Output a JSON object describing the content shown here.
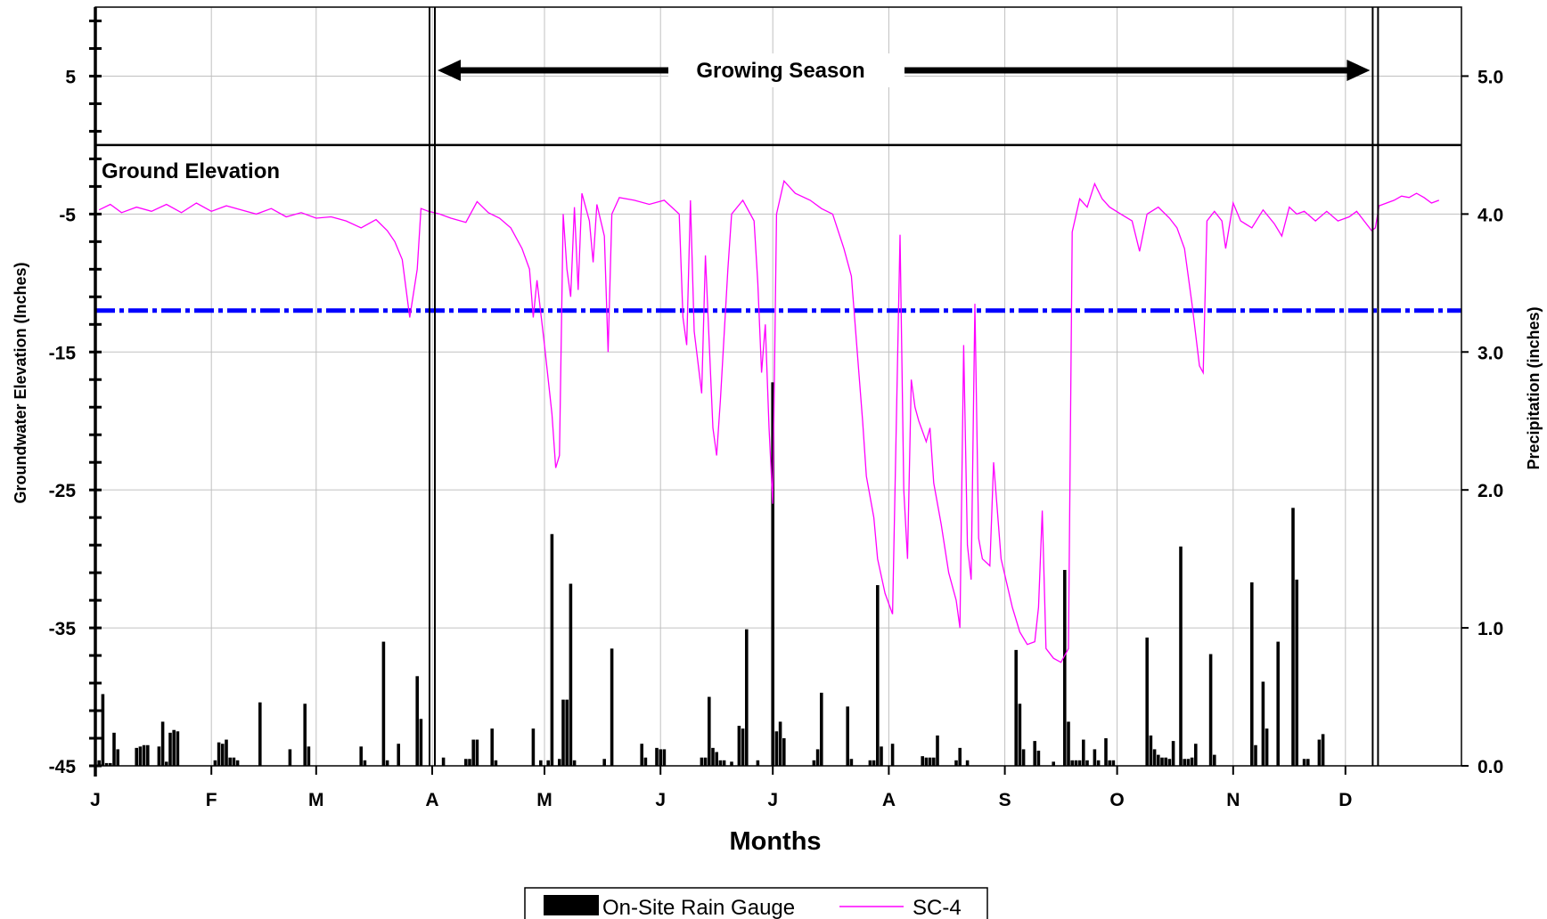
{
  "chart_data": {
    "type": "bar+line",
    "xlabel": "Months",
    "ylabel_left": "Groundwater Elevation (Inches)",
    "ylabel_right": "Precipitation (inches)",
    "x_tick_labels": [
      "J",
      "F",
      "M",
      "A",
      "M",
      "J",
      "J",
      "A",
      "S",
      "O",
      "N",
      "D"
    ],
    "x_range_days": [
      1,
      366
    ],
    "y_left": {
      "range": [
        -45,
        10
      ],
      "ticks": [
        5,
        -5,
        -15,
        -25,
        -35,
        -45
      ]
    },
    "y_right": {
      "range": [
        0,
        5.5
      ],
      "ticks": [
        "0.0",
        "1.0",
        "2.0",
        "3.0",
        "4.0",
        "5.0"
      ]
    },
    "annotations": {
      "ground_elevation": "Ground Elevation",
      "growing_season": "Growing Season",
      "ground_elevation_value": 0,
      "growing_season_start_day": 91,
      "growing_season_end_day": 343
    },
    "threshold_line": {
      "value": -12,
      "color": "#0000ff"
    },
    "series": [
      {
        "name": "On-Site Rain Gauge",
        "kind": "bar",
        "axis": "right",
        "color": "#000000",
        "points": [
          [
            2,
            0.04
          ],
          [
            3,
            0.52
          ],
          [
            4,
            0.02
          ],
          [
            5,
            0.02
          ],
          [
            6,
            0.24
          ],
          [
            7,
            0.12
          ],
          [
            12,
            0.13
          ],
          [
            13,
            0.14
          ],
          [
            14,
            0.15
          ],
          [
            15,
            0.15
          ],
          [
            18,
            0.14
          ],
          [
            19,
            0.32
          ],
          [
            20,
            0.03
          ],
          [
            21,
            0.24
          ],
          [
            22,
            0.26
          ],
          [
            23,
            0.25
          ],
          [
            33,
            0.04
          ],
          [
            34,
            0.17
          ],
          [
            35,
            0.16
          ],
          [
            36,
            0.19
          ],
          [
            37,
            0.06
          ],
          [
            38,
            0.06
          ],
          [
            39,
            0.04
          ],
          [
            45,
            0.46
          ],
          [
            53,
            0.12
          ],
          [
            57,
            0.45
          ],
          [
            58,
            0.14
          ],
          [
            72,
            0.14
          ],
          [
            73,
            0.04
          ],
          [
            78,
            0.9
          ],
          [
            79,
            0.04
          ],
          [
            82,
            0.16
          ],
          [
            87,
            0.65
          ],
          [
            88,
            0.34
          ],
          [
            94,
            0.06
          ],
          [
            100,
            0.05
          ],
          [
            101,
            0.05
          ],
          [
            102,
            0.19
          ],
          [
            103,
            0.19
          ],
          [
            107,
            0.27
          ],
          [
            108,
            0.04
          ],
          [
            118,
            0.27
          ],
          [
            120,
            0.04
          ],
          [
            122,
            0.04
          ],
          [
            123,
            1.68
          ],
          [
            125,
            0.05
          ],
          [
            126,
            0.48
          ],
          [
            127,
            0.48
          ],
          [
            128,
            1.32
          ],
          [
            129,
            0.04
          ],
          [
            137,
            0.05
          ],
          [
            139,
            0.85
          ],
          [
            147,
            0.16
          ],
          [
            148,
            0.06
          ],
          [
            151,
            0.13
          ],
          [
            152,
            0.12
          ],
          [
            153,
            0.12
          ],
          [
            163,
            0.06
          ],
          [
            164,
            0.06
          ],
          [
            165,
            0.5
          ],
          [
            166,
            0.13
          ],
          [
            167,
            0.1
          ],
          [
            168,
            0.04
          ],
          [
            169,
            0.04
          ],
          [
            171,
            0.03
          ],
          [
            173,
            0.29
          ],
          [
            174,
            0.27
          ],
          [
            175,
            0.99
          ],
          [
            178,
            0.04
          ],
          [
            182,
            2.78
          ],
          [
            183,
            0.25
          ],
          [
            184,
            0.32
          ],
          [
            185,
            0.2
          ],
          [
            193,
            0.04
          ],
          [
            194,
            0.12
          ],
          [
            195,
            0.53
          ],
          [
            202,
            0.43
          ],
          [
            203,
            0.05
          ],
          [
            208,
            0.04
          ],
          [
            209,
            0.04
          ],
          [
            210,
            1.31
          ],
          [
            211,
            0.14
          ],
          [
            214,
            0.16
          ],
          [
            222,
            0.07
          ],
          [
            223,
            0.06
          ],
          [
            224,
            0.06
          ],
          [
            225,
            0.06
          ],
          [
            226,
            0.22
          ],
          [
            231,
            0.04
          ],
          [
            232,
            0.13
          ],
          [
            234,
            0.04
          ],
          [
            247,
            0.84
          ],
          [
            248,
            0.45
          ],
          [
            249,
            0.12
          ],
          [
            252,
            0.18
          ],
          [
            253,
            0.11
          ],
          [
            257,
            0.03
          ],
          [
            260,
            1.42
          ],
          [
            261,
            0.32
          ],
          [
            262,
            0.04
          ],
          [
            263,
            0.04
          ],
          [
            264,
            0.04
          ],
          [
            265,
            0.19
          ],
          [
            266,
            0.04
          ],
          [
            268,
            0.12
          ],
          [
            269,
            0.04
          ],
          [
            271,
            0.2
          ],
          [
            272,
            0.04
          ],
          [
            273,
            0.04
          ],
          [
            282,
            0.93
          ],
          [
            283,
            0.22
          ],
          [
            284,
            0.12
          ],
          [
            285,
            0.08
          ],
          [
            286,
            0.06
          ],
          [
            287,
            0.06
          ],
          [
            288,
            0.05
          ],
          [
            289,
            0.18
          ],
          [
            291,
            1.59
          ],
          [
            292,
            0.05
          ],
          [
            293,
            0.05
          ],
          [
            294,
            0.06
          ],
          [
            295,
            0.16
          ],
          [
            299,
            0.81
          ],
          [
            300,
            0.08
          ],
          [
            310,
            1.33
          ],
          [
            311,
            0.15
          ],
          [
            313,
            0.61
          ],
          [
            314,
            0.27
          ],
          [
            317,
            0.9
          ],
          [
            321,
            1.87
          ],
          [
            322,
            1.35
          ],
          [
            324,
            0.05
          ],
          [
            325,
            0.05
          ],
          [
            328,
            0.19
          ],
          [
            329,
            0.23
          ]
        ]
      },
      {
        "name": "SC-4",
        "kind": "line",
        "axis": "left",
        "color": "#ff00ff",
        "points": [
          [
            2,
            -4.7
          ],
          [
            5,
            -4.3
          ],
          [
            8,
            -4.9
          ],
          [
            12,
            -4.5
          ],
          [
            16,
            -4.8
          ],
          [
            20,
            -4.3
          ],
          [
            24,
            -4.9
          ],
          [
            28,
            -4.2
          ],
          [
            32,
            -4.8
          ],
          [
            36,
            -4.4
          ],
          [
            40,
            -4.7
          ],
          [
            44,
            -5.0
          ],
          [
            48,
            -4.6
          ],
          [
            52,
            -5.2
          ],
          [
            56,
            -4.9
          ],
          [
            60,
            -5.3
          ],
          [
            64,
            -5.2
          ],
          [
            68,
            -5.5
          ],
          [
            72,
            -6.0
          ],
          [
            76,
            -5.4
          ],
          [
            79,
            -6.2
          ],
          [
            81,
            -7.0
          ],
          [
            83,
            -8.3
          ],
          [
            85,
            -12.5
          ],
          [
            87,
            -9.0
          ],
          [
            88,
            -4.6
          ],
          [
            90,
            -4.8
          ],
          [
            93,
            -5.0
          ],
          [
            96,
            -5.3
          ],
          [
            100,
            -5.6
          ],
          [
            103,
            -4.1
          ],
          [
            106,
            -4.9
          ],
          [
            109,
            -5.3
          ],
          [
            112,
            -6.0
          ],
          [
            115,
            -7.5
          ],
          [
            117,
            -9.0
          ],
          [
            118,
            -12.5
          ],
          [
            119,
            -9.8
          ],
          [
            121,
            -14.5
          ],
          [
            123,
            -19.5
          ],
          [
            124,
            -23.4
          ],
          [
            125,
            -22.5
          ],
          [
            126,
            -5.0
          ],
          [
            127,
            -9.0
          ],
          [
            128,
            -11.0
          ],
          [
            129,
            -4.5
          ],
          [
            130,
            -10.5
          ],
          [
            131,
            -3.5
          ],
          [
            133,
            -5.5
          ],
          [
            134,
            -8.5
          ],
          [
            135,
            -4.3
          ],
          [
            137,
            -6.6
          ],
          [
            138,
            -15.0
          ],
          [
            139,
            -5.0
          ],
          [
            141,
            -3.8
          ],
          [
            145,
            -4.0
          ],
          [
            149,
            -4.3
          ],
          [
            153,
            -4.0
          ],
          [
            157,
            -5.0
          ],
          [
            158,
            -12.5
          ],
          [
            159,
            -14.5
          ],
          [
            160,
            -4.0
          ],
          [
            161,
            -13.5
          ],
          [
            163,
            -18.0
          ],
          [
            164,
            -8.0
          ],
          [
            166,
            -20.5
          ],
          [
            167,
            -22.5
          ],
          [
            168,
            -18.5
          ],
          [
            170,
            -9.0
          ],
          [
            171,
            -5.0
          ],
          [
            174,
            -4.0
          ],
          [
            177,
            -5.5
          ],
          [
            178,
            -10.0
          ],
          [
            179,
            -16.5
          ],
          [
            180,
            -13.0
          ],
          [
            181,
            -20.5
          ],
          [
            182,
            -26.0
          ],
          [
            183,
            -5.0
          ],
          [
            185,
            -2.6
          ],
          [
            188,
            -3.5
          ],
          [
            192,
            -4.0
          ],
          [
            195,
            -4.6
          ],
          [
            198,
            -5.0
          ],
          [
            201,
            -7.5
          ],
          [
            203,
            -9.5
          ],
          [
            204,
            -13.0
          ],
          [
            205,
            -16.5
          ],
          [
            206,
            -20.0
          ],
          [
            207,
            -24.0
          ],
          [
            209,
            -27.0
          ],
          [
            210,
            -30.0
          ],
          [
            212,
            -32.5
          ],
          [
            214,
            -34.0
          ],
          [
            216,
            -6.5
          ],
          [
            217,
            -25.0
          ],
          [
            218,
            -30.0
          ],
          [
            219,
            -17.0
          ],
          [
            220,
            -19.0
          ],
          [
            221,
            -20.0
          ],
          [
            223,
            -21.5
          ],
          [
            224,
            -20.5
          ],
          [
            225,
            -24.5
          ],
          [
            227,
            -27.5
          ],
          [
            229,
            -31.0
          ],
          [
            231,
            -33.0
          ],
          [
            232,
            -35.0
          ],
          [
            233,
            -14.5
          ],
          [
            234,
            -29.0
          ],
          [
            235,
            -31.5
          ],
          [
            236,
            -11.5
          ],
          [
            237,
            -28.5
          ],
          [
            238,
            -30.0
          ],
          [
            240,
            -30.5
          ],
          [
            241,
            -23.0
          ],
          [
            243,
            -30.0
          ],
          [
            246,
            -33.5
          ],
          [
            248,
            -35.3
          ],
          [
            250,
            -36.2
          ],
          [
            252,
            -36.0
          ],
          [
            253,
            -33.5
          ],
          [
            254,
            -26.5
          ],
          [
            255,
            -36.5
          ],
          [
            257,
            -37.2
          ],
          [
            259,
            -37.5
          ],
          [
            261,
            -36.5
          ],
          [
            262,
            -6.3
          ],
          [
            264,
            -3.9
          ],
          [
            266,
            -4.5
          ],
          [
            268,
            -2.8
          ],
          [
            270,
            -3.9
          ],
          [
            272,
            -4.5
          ],
          [
            275,
            -5.0
          ],
          [
            278,
            -5.5
          ],
          [
            280,
            -7.7
          ],
          [
            282,
            -5.0
          ],
          [
            285,
            -4.5
          ],
          [
            288,
            -5.3
          ],
          [
            290,
            -6.0
          ],
          [
            292,
            -7.5
          ],
          [
            293,
            -9.5
          ],
          [
            294,
            -11.5
          ],
          [
            296,
            -16.0
          ],
          [
            297,
            -16.5
          ],
          [
            298,
            -5.5
          ],
          [
            300,
            -4.8
          ],
          [
            302,
            -5.5
          ],
          [
            303,
            -7.5
          ],
          [
            305,
            -4.2
          ],
          [
            307,
            -5.5
          ],
          [
            310,
            -6.0
          ],
          [
            313,
            -4.7
          ],
          [
            316,
            -5.7
          ],
          [
            318,
            -6.6
          ],
          [
            320,
            -4.5
          ],
          [
            322,
            -5.0
          ],
          [
            324,
            -4.8
          ],
          [
            327,
            -5.5
          ],
          [
            330,
            -4.8
          ],
          [
            333,
            -5.5
          ],
          [
            336,
            -5.2
          ],
          [
            338,
            -4.8
          ],
          [
            340,
            -5.5
          ],
          [
            342,
            -6.2
          ],
          [
            343,
            -6.0
          ],
          [
            344,
            -4.4
          ],
          [
            346,
            -4.2
          ],
          [
            348,
            -4.0
          ],
          [
            350,
            -3.7
          ],
          [
            352,
            -3.8
          ],
          [
            354,
            -3.5
          ],
          [
            356,
            -3.8
          ],
          [
            358,
            -4.2
          ],
          [
            360,
            -4.0
          ]
        ]
      }
    ],
    "legend": {
      "placement": "bottom-center",
      "entries": [
        "On-Site Rain Gauge",
        "SC-4"
      ]
    },
    "grid": true
  }
}
